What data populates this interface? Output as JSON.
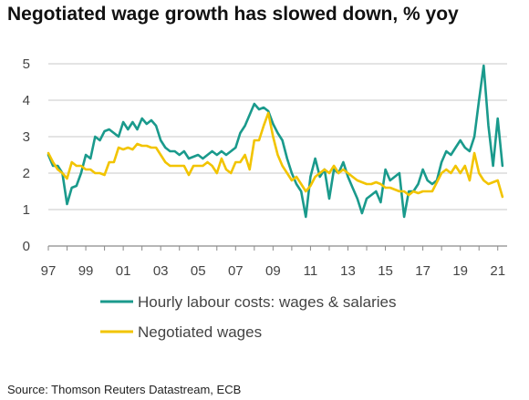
{
  "chart_data": {
    "type": "line",
    "title": "Negotiated wage growth has slowed down, % yoy",
    "source": "Source: Thomson Reuters Datastream, ECB",
    "x_tick_labels": [
      "97",
      "99",
      "01",
      "03",
      "05",
      "07",
      "09",
      "11",
      "13",
      "15",
      "17",
      "19",
      "21"
    ],
    "x_tick_years": [
      1997,
      1999,
      2001,
      2003,
      2005,
      2007,
      2009,
      2011,
      2013,
      2015,
      2017,
      2019,
      2021
    ],
    "xlim": [
      1997,
      2021.5
    ],
    "ylim": [
      0,
      5
    ],
    "y_ticks": [
      0,
      1,
      2,
      3,
      4,
      5
    ],
    "grid": "horizontal",
    "legend_position": "bottom",
    "series": [
      {
        "name": "Hourly labour costs: wages & salaries",
        "color": "#1A9A8C",
        "points": [
          [
            1997.0,
            2.5
          ],
          [
            1997.25,
            2.2
          ],
          [
            1997.5,
            2.2
          ],
          [
            1997.75,
            2.0
          ],
          [
            1998.0,
            1.15
          ],
          [
            1998.25,
            1.6
          ],
          [
            1998.5,
            1.65
          ],
          [
            1998.75,
            2.0
          ],
          [
            1999.0,
            2.5
          ],
          [
            1999.25,
            2.4
          ],
          [
            1999.5,
            3.0
          ],
          [
            1999.75,
            2.9
          ],
          [
            2000.0,
            3.15
          ],
          [
            2000.25,
            3.2
          ],
          [
            2000.5,
            3.1
          ],
          [
            2000.75,
            3.0
          ],
          [
            2001.0,
            3.4
          ],
          [
            2001.25,
            3.2
          ],
          [
            2001.5,
            3.4
          ],
          [
            2001.75,
            3.2
          ],
          [
            2002.0,
            3.5
          ],
          [
            2002.25,
            3.35
          ],
          [
            2002.5,
            3.45
          ],
          [
            2002.75,
            3.3
          ],
          [
            2003.0,
            2.9
          ],
          [
            2003.25,
            2.7
          ],
          [
            2003.5,
            2.6
          ],
          [
            2003.75,
            2.6
          ],
          [
            2004.0,
            2.5
          ],
          [
            2004.25,
            2.6
          ],
          [
            2004.5,
            2.4
          ],
          [
            2004.75,
            2.45
          ],
          [
            2005.0,
            2.5
          ],
          [
            2005.25,
            2.4
          ],
          [
            2005.5,
            2.5
          ],
          [
            2005.75,
            2.6
          ],
          [
            2006.0,
            2.5
          ],
          [
            2006.25,
            2.6
          ],
          [
            2006.5,
            2.5
          ],
          [
            2006.75,
            2.6
          ],
          [
            2007.0,
            2.7
          ],
          [
            2007.25,
            3.1
          ],
          [
            2007.5,
            3.3
          ],
          [
            2007.75,
            3.6
          ],
          [
            2008.0,
            3.9
          ],
          [
            2008.25,
            3.75
          ],
          [
            2008.5,
            3.8
          ],
          [
            2008.75,
            3.7
          ],
          [
            2009.0,
            3.35
          ],
          [
            2009.25,
            3.1
          ],
          [
            2009.5,
            2.9
          ],
          [
            2009.75,
            2.4
          ],
          [
            2010.0,
            2.0
          ],
          [
            2010.25,
            1.7
          ],
          [
            2010.5,
            1.5
          ],
          [
            2010.75,
            0.8
          ],
          [
            2011.0,
            1.9
          ],
          [
            2011.25,
            2.4
          ],
          [
            2011.5,
            1.9
          ],
          [
            2011.75,
            2.1
          ],
          [
            2012.0,
            1.3
          ],
          [
            2012.25,
            2.1
          ],
          [
            2012.5,
            2.0
          ],
          [
            2012.75,
            2.3
          ],
          [
            2013.0,
            1.9
          ],
          [
            2013.25,
            1.6
          ],
          [
            2013.5,
            1.3
          ],
          [
            2013.75,
            0.9
          ],
          [
            2014.0,
            1.3
          ],
          [
            2014.25,
            1.4
          ],
          [
            2014.5,
            1.5
          ],
          [
            2014.75,
            1.2
          ],
          [
            2015.0,
            2.1
          ],
          [
            2015.25,
            1.8
          ],
          [
            2015.5,
            1.9
          ],
          [
            2015.75,
            2.0
          ],
          [
            2016.0,
            0.8
          ],
          [
            2016.25,
            1.5
          ],
          [
            2016.5,
            1.5
          ],
          [
            2016.75,
            1.7
          ],
          [
            2017.0,
            2.1
          ],
          [
            2017.25,
            1.8
          ],
          [
            2017.5,
            1.7
          ],
          [
            2017.75,
            1.8
          ],
          [
            2018.0,
            2.3
          ],
          [
            2018.25,
            2.6
          ],
          [
            2018.5,
            2.5
          ],
          [
            2018.75,
            2.7
          ],
          [
            2019.0,
            2.9
          ],
          [
            2019.25,
            2.7
          ],
          [
            2019.5,
            2.6
          ],
          [
            2019.75,
            3.0
          ],
          [
            2020.0,
            4.0
          ],
          [
            2020.25,
            4.95
          ],
          [
            2020.5,
            3.3
          ],
          [
            2020.75,
            2.2
          ],
          [
            2021.0,
            3.5
          ],
          [
            2021.25,
            2.2
          ]
        ]
      },
      {
        "name": "Negotiated wages",
        "color": "#F2C400",
        "points": [
          [
            1997.0,
            2.55
          ],
          [
            1997.25,
            2.3
          ],
          [
            1997.5,
            2.1
          ],
          [
            1997.75,
            2.0
          ],
          [
            1998.0,
            1.85
          ],
          [
            1998.25,
            2.3
          ],
          [
            1998.5,
            2.2
          ],
          [
            1998.75,
            2.2
          ],
          [
            1999.0,
            2.1
          ],
          [
            1999.25,
            2.1
          ],
          [
            1999.5,
            2.0
          ],
          [
            1999.75,
            2.0
          ],
          [
            2000.0,
            1.95
          ],
          [
            2000.25,
            2.3
          ],
          [
            2000.5,
            2.3
          ],
          [
            2000.75,
            2.7
          ],
          [
            2001.0,
            2.65
          ],
          [
            2001.25,
            2.7
          ],
          [
            2001.5,
            2.65
          ],
          [
            2001.75,
            2.8
          ],
          [
            2002.0,
            2.75
          ],
          [
            2002.25,
            2.75
          ],
          [
            2002.5,
            2.7
          ],
          [
            2002.75,
            2.7
          ],
          [
            2003.0,
            2.5
          ],
          [
            2003.25,
            2.3
          ],
          [
            2003.5,
            2.2
          ],
          [
            2003.75,
            2.2
          ],
          [
            2004.0,
            2.2
          ],
          [
            2004.25,
            2.2
          ],
          [
            2004.5,
            1.95
          ],
          [
            2004.75,
            2.2
          ],
          [
            2005.0,
            2.2
          ],
          [
            2005.25,
            2.2
          ],
          [
            2005.5,
            2.3
          ],
          [
            2005.75,
            2.2
          ],
          [
            2006.0,
            2.0
          ],
          [
            2006.25,
            2.4
          ],
          [
            2006.5,
            2.1
          ],
          [
            2006.75,
            2.0
          ],
          [
            2007.0,
            2.3
          ],
          [
            2007.25,
            2.3
          ],
          [
            2007.5,
            2.5
          ],
          [
            2007.75,
            2.1
          ],
          [
            2008.0,
            2.9
          ],
          [
            2008.25,
            2.9
          ],
          [
            2008.5,
            3.3
          ],
          [
            2008.75,
            3.65
          ],
          [
            2009.0,
            3.0
          ],
          [
            2009.25,
            2.5
          ],
          [
            2009.5,
            2.2
          ],
          [
            2009.75,
            2.0
          ],
          [
            2010.0,
            1.8
          ],
          [
            2010.25,
            1.9
          ],
          [
            2010.5,
            1.7
          ],
          [
            2010.75,
            1.5
          ],
          [
            2011.0,
            1.65
          ],
          [
            2011.25,
            1.9
          ],
          [
            2011.5,
            2.0
          ],
          [
            2011.75,
            2.1
          ],
          [
            2012.0,
            2.0
          ],
          [
            2012.25,
            2.2
          ],
          [
            2012.5,
            2.0
          ],
          [
            2012.75,
            2.1
          ],
          [
            2013.0,
            2.0
          ],
          [
            2013.25,
            1.9
          ],
          [
            2013.5,
            1.8
          ],
          [
            2013.75,
            1.75
          ],
          [
            2014.0,
            1.7
          ],
          [
            2014.25,
            1.7
          ],
          [
            2014.5,
            1.75
          ],
          [
            2014.75,
            1.7
          ],
          [
            2015.0,
            1.6
          ],
          [
            2015.25,
            1.6
          ],
          [
            2015.5,
            1.55
          ],
          [
            2015.75,
            1.5
          ],
          [
            2016.0,
            1.5
          ],
          [
            2016.25,
            1.4
          ],
          [
            2016.5,
            1.5
          ],
          [
            2016.75,
            1.45
          ],
          [
            2017.0,
            1.5
          ],
          [
            2017.25,
            1.5
          ],
          [
            2017.5,
            1.5
          ],
          [
            2017.75,
            1.75
          ],
          [
            2018.0,
            2.0
          ],
          [
            2018.25,
            2.1
          ],
          [
            2018.5,
            2.0
          ],
          [
            2018.75,
            2.2
          ],
          [
            2019.0,
            2.0
          ],
          [
            2019.25,
            2.2
          ],
          [
            2019.5,
            1.8
          ],
          [
            2019.75,
            2.55
          ],
          [
            2020.0,
            2.0
          ],
          [
            2020.25,
            1.8
          ],
          [
            2020.5,
            1.7
          ],
          [
            2020.75,
            1.75
          ],
          [
            2021.0,
            1.8
          ],
          [
            2021.25,
            1.35
          ]
        ]
      }
    ]
  }
}
